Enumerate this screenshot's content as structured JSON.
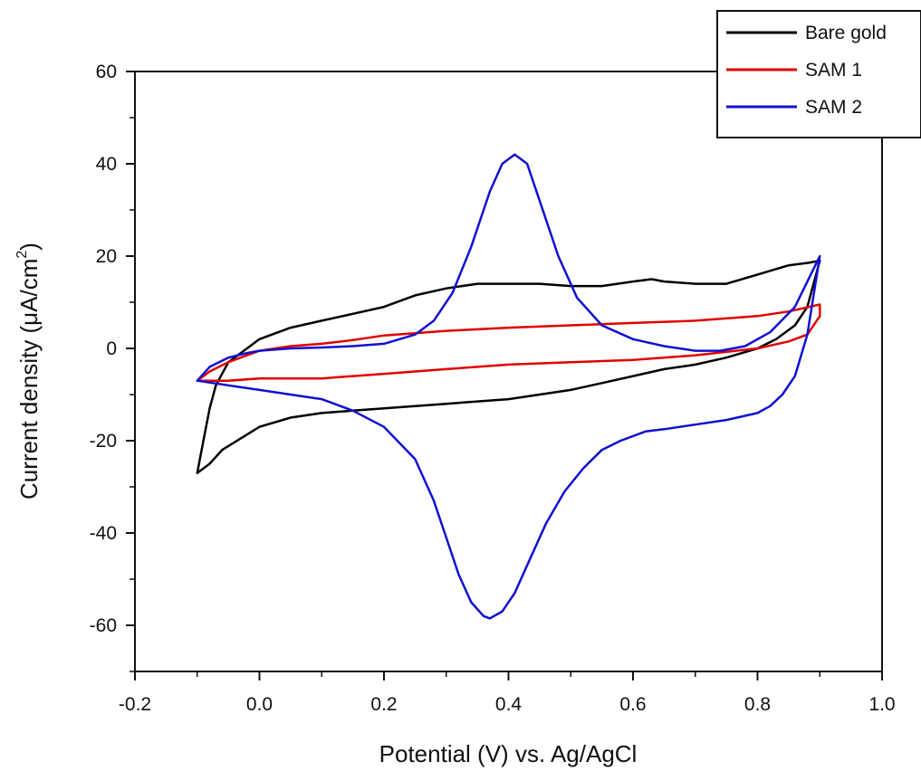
{
  "chart_data": {
    "type": "line",
    "title": "",
    "xlabel": "Potential (V) vs. Ag/AgCl",
    "ylabel": {
      "prefix": "Current density (",
      "mu": "μ",
      "mid": "A/cm",
      "sup": "2",
      "suffix": ")"
    },
    "xlim": [
      -0.2,
      1.0
    ],
    "ylim": [
      -70,
      60
    ],
    "xticks": [
      -0.2,
      0.0,
      0.2,
      0.4,
      0.6,
      0.8,
      1.0
    ],
    "xtick_labels": [
      "-0.2",
      "0.0",
      "0.2",
      "0.4",
      "0.6",
      "0.8",
      "1.0"
    ],
    "yticks": [
      -60,
      -40,
      -20,
      0,
      20,
      40,
      60
    ],
    "ytick_labels": [
      "-60",
      "-40",
      "-20",
      "0",
      "20",
      "40",
      "60"
    ],
    "grid": false,
    "legend_position": "top-right",
    "series": [
      {
        "name": "Bare gold",
        "color": "#000000",
        "x": [
          -0.1,
          -0.09,
          -0.08,
          -0.07,
          -0.05,
          -0.02,
          0.0,
          0.05,
          0.1,
          0.15,
          0.2,
          0.25,
          0.3,
          0.35,
          0.4,
          0.45,
          0.5,
          0.55,
          0.6,
          0.63,
          0.65,
          0.7,
          0.75,
          0.8,
          0.85,
          0.88,
          0.9,
          0.89,
          0.88,
          0.86,
          0.83,
          0.8,
          0.75,
          0.7,
          0.65,
          0.6,
          0.55,
          0.5,
          0.45,
          0.4,
          0.35,
          0.3,
          0.25,
          0.2,
          0.15,
          0.1,
          0.05,
          0.0,
          -0.03,
          -0.06,
          -0.08,
          -0.1
        ],
        "y": [
          -27,
          -20,
          -13,
          -8,
          -3,
          0,
          2,
          4.5,
          6,
          7.5,
          9,
          11.5,
          13,
          14,
          14,
          14,
          13.5,
          13.5,
          14.5,
          15,
          14.5,
          14,
          14,
          16,
          18,
          18.5,
          19,
          14,
          9,
          5,
          2,
          0,
          -2,
          -3.5,
          -4.5,
          -6,
          -7.5,
          -9,
          -10,
          -11,
          -11.5,
          -12,
          -12.5,
          -13,
          -13.5,
          -14,
          -15,
          -17,
          -19.5,
          -22,
          -25,
          -27
        ]
      },
      {
        "name": "SAM 1",
        "color": "#e00000",
        "x": [
          -0.1,
          -0.08,
          -0.05,
          -0.02,
          0.0,
          0.05,
          0.1,
          0.15,
          0.2,
          0.3,
          0.4,
          0.5,
          0.6,
          0.7,
          0.8,
          0.85,
          0.9,
          0.9,
          0.88,
          0.85,
          0.8,
          0.7,
          0.6,
          0.5,
          0.4,
          0.3,
          0.2,
          0.15,
          0.1,
          0.05,
          0.0,
          -0.05,
          -0.1
        ],
        "y": [
          -7,
          -5,
          -3,
          -1.5,
          -0.5,
          0.5,
          1,
          1.8,
          2.8,
          3.8,
          4.5,
          5,
          5.5,
          6,
          7,
          8,
          9.5,
          7,
          3,
          1.5,
          0,
          -1.5,
          -2.5,
          -3,
          -3.5,
          -4.5,
          -5.5,
          -6,
          -6.5,
          -6.5,
          -6.5,
          -7,
          -7
        ]
      },
      {
        "name": "SAM 2",
        "color": "#1010d0",
        "x": [
          -0.1,
          -0.08,
          -0.05,
          -0.02,
          0.0,
          0.05,
          0.1,
          0.15,
          0.2,
          0.25,
          0.28,
          0.31,
          0.34,
          0.37,
          0.39,
          0.41,
          0.43,
          0.45,
          0.48,
          0.51,
          0.55,
          0.6,
          0.65,
          0.7,
          0.74,
          0.78,
          0.82,
          0.86,
          0.9,
          0.88,
          0.86,
          0.84,
          0.82,
          0.8,
          0.75,
          0.7,
          0.65,
          0.62,
          0.58,
          0.55,
          0.52,
          0.49,
          0.46,
          0.43,
          0.41,
          0.39,
          0.37,
          0.36,
          0.34,
          0.32,
          0.3,
          0.28,
          0.25,
          0.2,
          0.15,
          0.1,
          0.05,
          0.0,
          -0.05,
          -0.1
        ],
        "y": [
          -7,
          -4,
          -2,
          -1,
          -0.5,
          0,
          0.2,
          0.5,
          1,
          3,
          6,
          12,
          22,
          34,
          40,
          42,
          40,
          32,
          20,
          11,
          5,
          2,
          0.5,
          -0.5,
          -0.5,
          0.5,
          3.5,
          9,
          20,
          3,
          -6,
          -10,
          -12.5,
          -14,
          -15.5,
          -16.5,
          -17.5,
          -18,
          -20,
          -22,
          -26,
          -31,
          -38,
          -47,
          -53,
          -57,
          -58.5,
          -58,
          -55,
          -49,
          -41,
          -33,
          -24,
          -17,
          -13.5,
          -11,
          -10,
          -9,
          -8,
          -7
        ]
      }
    ]
  }
}
